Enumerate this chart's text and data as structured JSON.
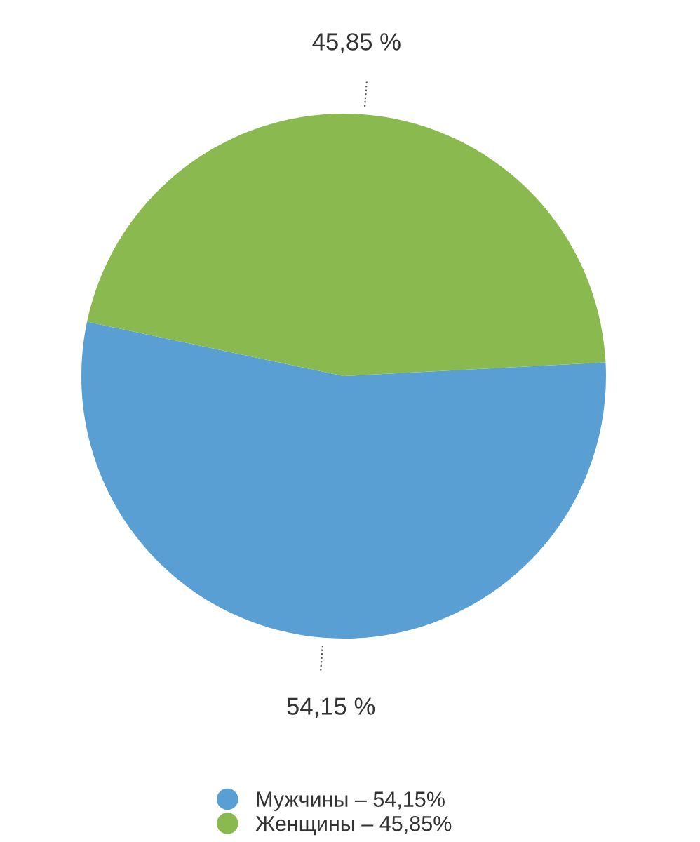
{
  "chart_data": {
    "type": "pie",
    "categories": [
      "Мужчины – 54,15%",
      "Женщины – 45,85%"
    ],
    "values": [
      54.15,
      45.85
    ],
    "colors": [
      "#5a9fd4",
      "#8aba4f"
    ],
    "value_labels": [
      "54,15 %",
      "45,85 %"
    ],
    "legend": "bottom"
  }
}
